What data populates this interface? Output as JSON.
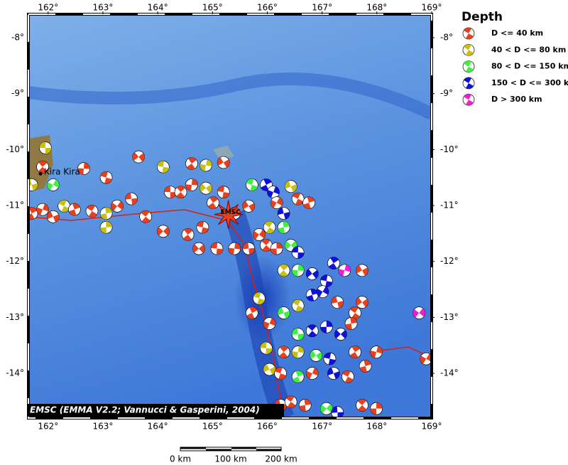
{
  "map": {
    "legend_title": "Depth",
    "legend": [
      {
        "label": "D <= 40 km",
        "color": "#e8401c"
      },
      {
        "label": "40 < D <= 80 km",
        "color": "#c8c010"
      },
      {
        "label": "80 < D <= 150 km",
        "color": "#40f040"
      },
      {
        "label": "150 < D <= 300 km",
        "color": "#1010d8"
      },
      {
        "label": "D > 300 km",
        "color": "#f020d0"
      }
    ],
    "xlim": [
      161.64,
      169
    ],
    "ylim": [
      -14.8,
      -7.58
    ],
    "xticks": [
      {
        "value": 162,
        "label": "162°"
      },
      {
        "value": 163,
        "label": "163°"
      },
      {
        "value": 164,
        "label": "164°"
      },
      {
        "value": 165,
        "label": "165°"
      },
      {
        "value": 166,
        "label": "166°"
      },
      {
        "value": 167,
        "label": "167°"
      },
      {
        "value": 168,
        "label": "168°"
      },
      {
        "value": 169,
        "label": "169°"
      }
    ],
    "yticks": [
      {
        "value": -8,
        "label": "-8°"
      },
      {
        "value": -9,
        "label": "-9°"
      },
      {
        "value": -10,
        "label": "-10°"
      },
      {
        "value": -11,
        "label": "-11°"
      },
      {
        "value": -12,
        "label": "-12°"
      },
      {
        "value": -13,
        "label": "-13°"
      },
      {
        "value": -14,
        "label": "-14°"
      }
    ],
    "places": [
      {
        "name": "Kira Kira",
        "lon": 161.86,
        "lat": -10.43
      }
    ],
    "epicenter": {
      "label": "EMSC",
      "lon": 165.29,
      "lat": -11.16
    },
    "events": [
      [
        161.95,
        -9.97,
        1
      ],
      [
        161.9,
        -10.31,
        0
      ],
      [
        162.65,
        -10.34,
        0
      ],
      [
        163.65,
        -10.13,
        0
      ],
      [
        164.1,
        -10.31,
        1
      ],
      [
        164.62,
        -10.25,
        0
      ],
      [
        164.88,
        -10.28,
        1
      ],
      [
        165.2,
        -10.23,
        0
      ],
      [
        163.06,
        -10.5,
        0
      ],
      [
        161.7,
        -11.14,
        0
      ],
      [
        161.9,
        -11.07,
        0
      ],
      [
        162.09,
        -11.2,
        0
      ],
      [
        162.29,
        -11.01,
        1
      ],
      [
        162.48,
        -11.07,
        0
      ],
      [
        162.09,
        -10.63,
        2
      ],
      [
        161.7,
        -10.63,
        1
      ],
      [
        162.8,
        -11.1,
        0
      ],
      [
        163.06,
        -11.14,
        1
      ],
      [
        163.26,
        -11.01,
        0
      ],
      [
        163.52,
        -10.88,
        0
      ],
      [
        163.78,
        -11.2,
        0
      ],
      [
        163.06,
        -11.39,
        1
      ],
      [
        164.1,
        -11.46,
        0
      ],
      [
        164.23,
        -10.76,
        0
      ],
      [
        164.42,
        -10.76,
        0
      ],
      [
        164.62,
        -10.63,
        0
      ],
      [
        164.88,
        -10.69,
        1
      ],
      [
        165.2,
        -10.76,
        0
      ],
      [
        165.01,
        -10.95,
        0
      ],
      [
        165.4,
        -11.14,
        0
      ],
      [
        165.66,
        -11.01,
        0
      ],
      [
        165.72,
        -10.63,
        2
      ],
      [
        165.98,
        -10.63,
        3
      ],
      [
        166.11,
        -10.76,
        3
      ],
      [
        166.43,
        -10.66,
        1
      ],
      [
        166.56,
        -10.88,
        0
      ],
      [
        166.76,
        -10.95,
        0
      ],
      [
        166.17,
        -10.95,
        0
      ],
      [
        166.3,
        -11.14,
        3
      ],
      [
        166.04,
        -11.39,
        1
      ],
      [
        166.3,
        -11.39,
        2
      ],
      [
        165.85,
        -11.52,
        0
      ],
      [
        165.66,
        -11.77,
        0
      ],
      [
        165.98,
        -11.71,
        0
      ],
      [
        166.17,
        -11.77,
        0
      ],
      [
        166.43,
        -11.71,
        2
      ],
      [
        166.56,
        -11.84,
        3
      ],
      [
        166.3,
        -12.16,
        1
      ],
      [
        166.56,
        -12.16,
        2
      ],
      [
        166.82,
        -12.22,
        3
      ],
      [
        167.08,
        -12.35,
        3
      ],
      [
        167.21,
        -12.03,
        3
      ],
      [
        167.41,
        -12.16,
        4
      ],
      [
        167.73,
        -12.16,
        0
      ],
      [
        165.85,
        -12.66,
        1
      ],
      [
        165.72,
        -12.92,
        0
      ],
      [
        166.04,
        -13.11,
        0
      ],
      [
        166.3,
        -12.92,
        2
      ],
      [
        166.56,
        -12.79,
        1
      ],
      [
        166.82,
        -12.6,
        3
      ],
      [
        167.01,
        -12.54,
        3
      ],
      [
        167.28,
        -12.73,
        0
      ],
      [
        167.6,
        -12.92,
        0
      ],
      [
        167.53,
        -13.11,
        0
      ],
      [
        168.77,
        -12.92,
        4
      ],
      [
        166.56,
        -13.3,
        2
      ],
      [
        166.82,
        -13.24,
        3
      ],
      [
        167.08,
        -13.17,
        3
      ],
      [
        167.34,
        -13.3,
        3
      ],
      [
        165.98,
        -13.55,
        1
      ],
      [
        166.3,
        -13.62,
        0
      ],
      [
        166.56,
        -13.62,
        1
      ],
      [
        166.89,
        -13.68,
        2
      ],
      [
        167.14,
        -13.74,
        3
      ],
      [
        167.6,
        -13.62,
        0
      ],
      [
        167.99,
        -13.62,
        0
      ],
      [
        166.04,
        -13.93,
        1
      ],
      [
        166.24,
        -14.0,
        0
      ],
      [
        166.56,
        -14.06,
        2
      ],
      [
        166.82,
        -14.0,
        0
      ],
      [
        167.21,
        -14.0,
        3
      ],
      [
        167.47,
        -14.06,
        0
      ],
      [
        167.79,
        -13.87,
        0
      ],
      [
        168.9,
        -13.74,
        0
      ],
      [
        166.24,
        -14.57,
        0
      ],
      [
        166.43,
        -14.51,
        0
      ],
      [
        166.69,
        -14.57,
        0
      ],
      [
        167.08,
        -14.63,
        2
      ],
      [
        167.28,
        -14.7,
        3
      ],
      [
        167.73,
        -14.57,
        0
      ],
      [
        167.99,
        -14.63,
        0
      ],
      [
        164.75,
        -11.77,
        0
      ],
      [
        165.08,
        -11.77,
        0
      ],
      [
        164.55,
        -11.52,
        0
      ],
      [
        165.4,
        -11.77,
        0
      ],
      [
        167.73,
        -12.73,
        0
      ],
      [
        164.82,
        -11.39,
        0
      ]
    ],
    "credit": "EMSC (EMMA V2.2; Vannucci & Gasperini, 2004)",
    "scale_bar": [
      "0 km",
      "100 km",
      "200 km"
    ]
  }
}
